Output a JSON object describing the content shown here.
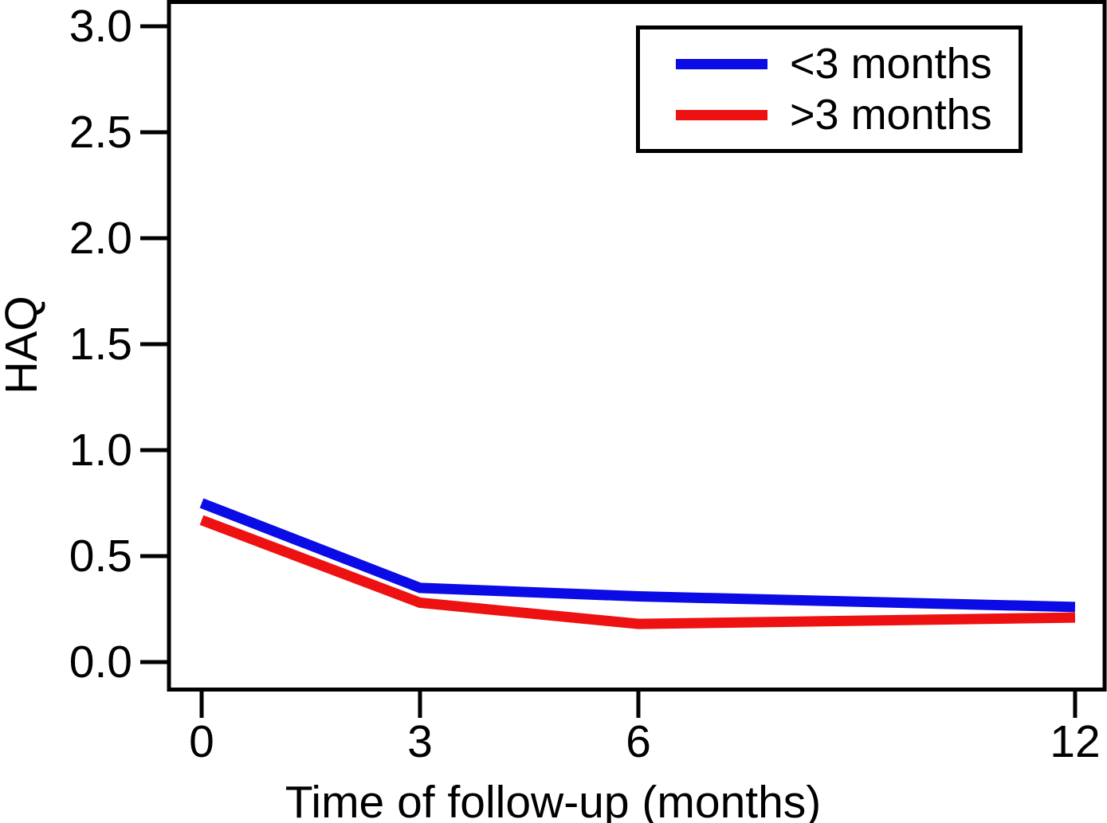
{
  "chart_data": {
    "type": "line",
    "title": "",
    "xlabel": "Time of follow-up (months)",
    "ylabel": "HAQ",
    "x": [
      0,
      3,
      6,
      12
    ],
    "xtick_labels": [
      "0",
      "3",
      "6",
      "12"
    ],
    "yticks": [
      3.0,
      2.5,
      2.0,
      1.5,
      1.0,
      0.5,
      0.0
    ],
    "ytick_labels": [
      "3.0",
      "2.5",
      "2.0",
      "1.5",
      "1.0",
      "0.5",
      "0.0"
    ],
    "xlim": [
      -0.45,
      12.4
    ],
    "ylim": [
      -0.13,
      3.12
    ],
    "grid": false,
    "legend_position": "top-right",
    "series": [
      {
        "name": "<3 months",
        "color": "#0b0be6",
        "values": [
          0.75,
          0.35,
          0.31,
          0.26
        ]
      },
      {
        "name": ">3 months",
        "color": "#ee1111",
        "values": [
          0.67,
          0.28,
          0.18,
          0.21
        ]
      }
    ],
    "colors": {
      "axis": "#000000",
      "background": "#ffffff"
    }
  }
}
